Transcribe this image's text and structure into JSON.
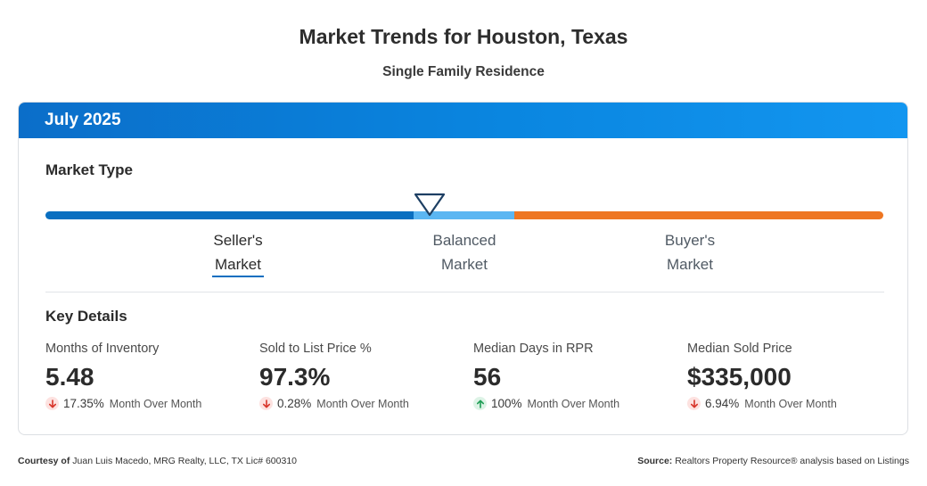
{
  "page": {
    "title": "Market Trends for Houston, Texas",
    "subtitle": "Single Family Residence"
  },
  "card": {
    "period": "July 2025",
    "market_type_title": "Market Type",
    "market_type": {
      "selected": "Seller's Market",
      "segments": [
        {
          "line1": "Seller's",
          "line2": "Market",
          "color": "#0a6fc0"
        },
        {
          "line1": "Balanced",
          "line2": "Market",
          "color": "#5bb6f2"
        },
        {
          "line1": "Buyer's",
          "line2": "Market",
          "color": "#ee7622"
        }
      ]
    },
    "key_details_title": "Key Details",
    "metrics": [
      {
        "label": "Months of Inventory",
        "value": "5.48",
        "direction": "down",
        "change": "17.35%",
        "period": "Month Over Month"
      },
      {
        "label": "Sold to List Price %",
        "value": "97.3%",
        "direction": "down",
        "change": "0.28%",
        "period": "Month Over Month"
      },
      {
        "label": "Median Days in RPR",
        "value": "56",
        "direction": "up",
        "change": "100%",
        "period": "Month Over Month"
      },
      {
        "label": "Median Sold Price",
        "value": "$335,000",
        "direction": "down",
        "change": "6.94%",
        "period": "Month Over Month"
      }
    ]
  },
  "footer": {
    "courtesy_label": "Courtesy of",
    "courtesy_text": "Juan Luis Macedo, MRG Realty, LLC, TX Lic# 600310",
    "source_label": "Source:",
    "source_text": "Realtors Property Resource® analysis based on Listings"
  },
  "colors": {
    "header_blue": "#0a86e0",
    "seller": "#0a6fc0",
    "balanced": "#5bb6f2",
    "buyer": "#ee7622",
    "down": "#d8352a",
    "up": "#1e9d55"
  }
}
